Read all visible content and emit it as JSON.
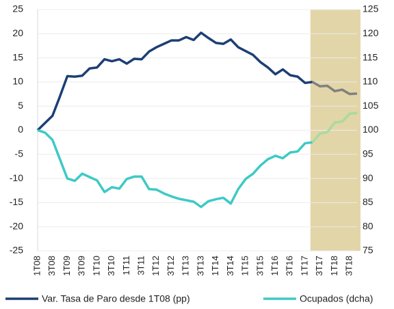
{
  "chart_data": {
    "type": "line",
    "categories": [
      "1T08",
      null,
      "3T08",
      null,
      "1T09",
      null,
      "3T09",
      null,
      "1T10",
      null,
      "3T10",
      null,
      "1T11",
      null,
      "3T11",
      null,
      "1T12",
      null,
      "3T12",
      null,
      "1T13",
      null,
      "3T13",
      null,
      "1T14",
      null,
      "3T14",
      null,
      "1T15",
      null,
      "3T15",
      null,
      "1T16",
      null,
      "3T16",
      null,
      "1T17",
      null,
      "3T17",
      null,
      "1T18",
      null,
      "3T18",
      null
    ],
    "series": [
      {
        "name": "Var. Tasa de Paro desde 1T08 (pp)",
        "color": "#1c3f74",
        "forecast_color": "#808080",
        "axis": "y",
        "values": [
          0,
          1.5,
          3,
          7,
          11.2,
          11.1,
          11.3,
          12.8,
          13,
          14.7,
          14.3,
          14.7,
          13.8,
          14.8,
          14.7,
          16.3,
          17.2,
          17.9,
          18.6,
          18.6,
          19.3,
          18.7,
          20.2,
          19.1,
          18.1,
          17.9,
          18.8,
          17.2,
          16.4,
          15.6,
          14.1,
          13,
          11.6,
          12.6,
          11.4,
          11.1,
          9.8,
          10,
          9.1,
          9.2,
          8.1,
          8.4,
          7.5,
          7.6
        ]
      },
      {
        "name": "Ocupados (dcha)",
        "color": "#3ec9c6",
        "forecast_color": "#a8dba0",
        "axis": "y2",
        "values": [
          100,
          99.5,
          98,
          94,
          90,
          89.5,
          91,
          90.3,
          89.6,
          87.2,
          88.2,
          87.9,
          89.9,
          90.4,
          90.4,
          87.8,
          87.7,
          86.9,
          86.3,
          85.8,
          85.5,
          85.2,
          84.1,
          85.3,
          85.7,
          86,
          84.8,
          87.8,
          89.9,
          91,
          92.7,
          94,
          94.7,
          94.2,
          95.4,
          95.6,
          97.3,
          97.5,
          99.3,
          99.6,
          101.6,
          101.8,
          103.4,
          103.6
        ]
      }
    ],
    "forecast_from": 37,
    "shade_color": "#e2d5a8",
    "ylim": [
      -25,
      25
    ],
    "yticks": [
      -25,
      -20,
      -15,
      -10,
      -5,
      0,
      5,
      10,
      15,
      20,
      25
    ],
    "y2lim": [
      75,
      125
    ],
    "y2ticks": [
      75,
      80,
      85,
      90,
      95,
      100,
      105,
      110,
      115,
      120,
      125
    ],
    "grid": true,
    "legend": "bottom"
  }
}
